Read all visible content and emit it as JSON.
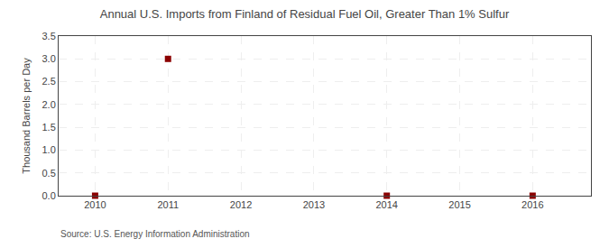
{
  "chart_data": {
    "type": "scatter",
    "title": "Annual U.S. Imports from Finland of Residual Fuel Oil, Greater Than 1% Sulfur",
    "y_label": "Thousand Barrels per Day",
    "source": "Source: U.S. Energy Information Administration",
    "x": [
      2010,
      2011,
      2014,
      2016
    ],
    "values": [
      0.0,
      3.0,
      0.0,
      0.0
    ],
    "color": "#8b0000",
    "marker": "square",
    "xlim": [
      2009.5,
      2016.8
    ],
    "ylim": [
      0.0,
      3.5
    ],
    "xticks": [
      2010,
      2011,
      2012,
      2013,
      2014,
      2015,
      2016
    ],
    "yticks": [
      {
        "value": 0.0,
        "label": "0.0"
      },
      0.5,
      {
        "value": 1.0,
        "label": "1.0"
      },
      1.5,
      {
        "value": 2.0,
        "label": "2.0"
      },
      2.5,
      {
        "value": 3.0,
        "label": "3.0"
      },
      3.5
    ],
    "grid": true
  }
}
